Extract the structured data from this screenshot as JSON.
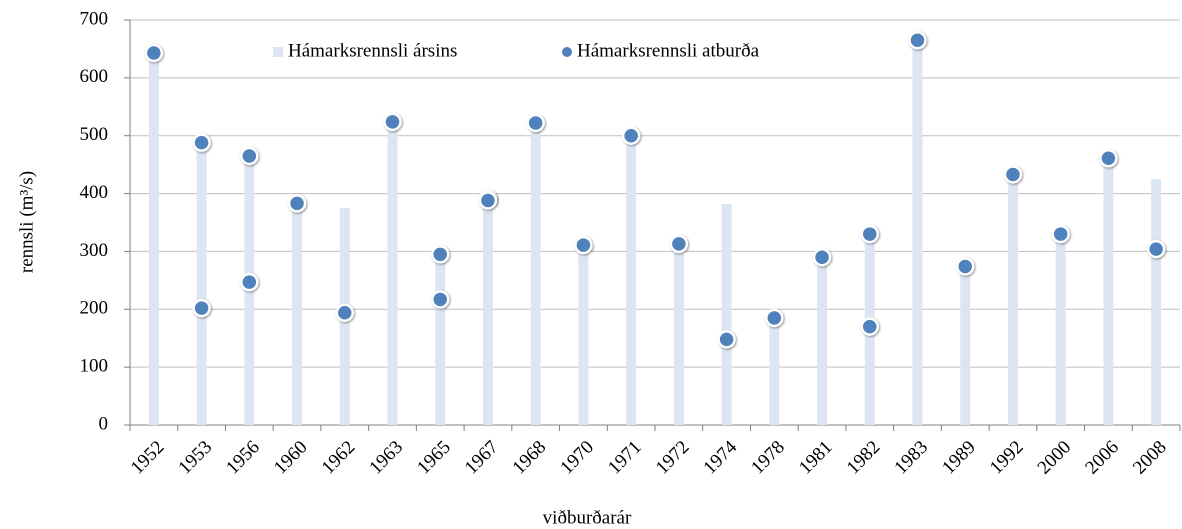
{
  "chart_data": {
    "type": "bar",
    "x_label": "viðburðarár",
    "y_label": "rennsli (m³/s)",
    "categories": [
      "1952",
      "1953",
      "1956",
      "1960",
      "1962",
      "1963",
      "1965",
      "1967",
      "1968",
      "1970",
      "1971",
      "1972",
      "1974",
      "1978",
      "1981",
      "1982",
      "1983",
      "1989",
      "1992",
      "2000",
      "2006",
      "2008"
    ],
    "series": [
      {
        "name": "Hámarksrennsli ársins",
        "type": "bar",
        "color": "#dce6f2",
        "values": [
          645,
          490,
          465,
          383,
          375,
          525,
          295,
          395,
          522,
          312,
          500,
          313,
          382,
          185,
          290,
          330,
          665,
          275,
          433,
          330,
          462,
          425
        ]
      },
      {
        "name": "Hámarksrennsli atburða",
        "type": "scatter",
        "color": "#4f81bd",
        "values": [
          [
            643
          ],
          [
            488,
            202
          ],
          [
            465,
            247
          ],
          [
            383
          ],
          [
            194
          ],
          [
            524
          ],
          [
            295,
            217
          ],
          [
            392,
            388
          ],
          [
            522
          ],
          [
            311
          ],
          [
            500
          ],
          [
            313
          ],
          [
            148
          ],
          [
            185
          ],
          [
            290
          ],
          [
            330,
            170
          ],
          [
            665
          ],
          [
            274
          ],
          [
            433
          ],
          [
            330
          ],
          [
            461
          ],
          [
            304
          ]
        ]
      }
    ],
    "ylim": [
      0,
      700
    ],
    "yticks": [
      0,
      100,
      200,
      300,
      400,
      500,
      600,
      700
    ],
    "grid": true,
    "legend": "top"
  }
}
